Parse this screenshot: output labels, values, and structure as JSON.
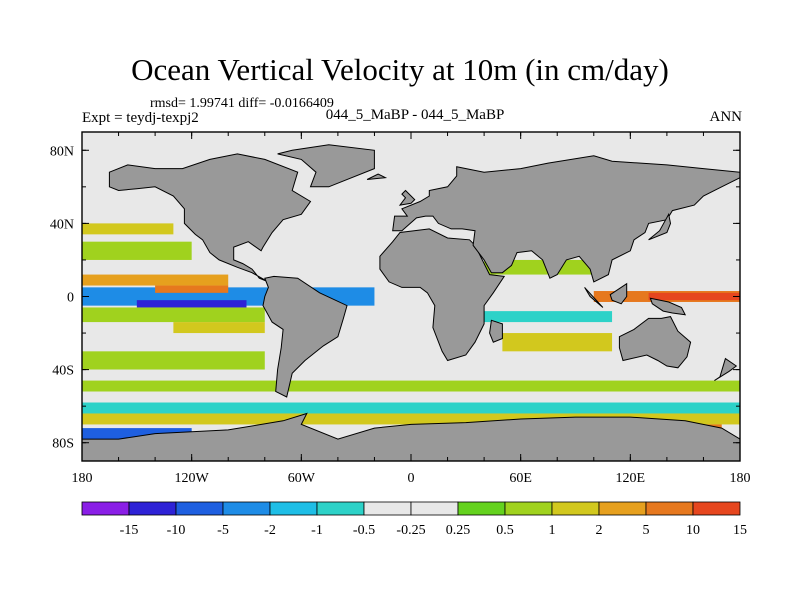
{
  "title": "Ocean Vertical Velocity at 10m (in cm/day)",
  "stats_line": "rmsd= 1.99741 diff= -0.0166409",
  "experiment_label": "Expt = teydj-texpj2",
  "subtitle": "044_5_MaBP - 044_5_MaBP",
  "season_label": "ANN",
  "map": {
    "projection": "cylindrical equidistant",
    "lon_range": [
      -180,
      180
    ],
    "lat_range": [
      -90,
      90
    ],
    "land_color": "#999999"
  },
  "axes": {
    "x_ticks": [
      {
        "lon": -180,
        "label": "180"
      },
      {
        "lon": -120,
        "label": "120W"
      },
      {
        "lon": -60,
        "label": "60W"
      },
      {
        "lon": 0,
        "label": "0"
      },
      {
        "lon": 60,
        "label": "60E"
      },
      {
        "lon": 120,
        "label": "120E"
      },
      {
        "lon": 180,
        "label": "180"
      }
    ],
    "y_ticks": [
      {
        "lat": 80,
        "label": "80N"
      },
      {
        "lat": 40,
        "label": "40N"
      },
      {
        "lat": 0,
        "label": "0"
      },
      {
        "lat": -40,
        "label": "40S"
      },
      {
        "lat": -80,
        "label": "80S"
      }
    ]
  },
  "colorbar": {
    "colors": [
      "#8a1ee6",
      "#2e22d6",
      "#1e5fe0",
      "#1e8ce6",
      "#1ebee6",
      "#2dd2c8",
      "#e8e8e8",
      "#e8e8e8",
      "#64d21e",
      "#a0d21e",
      "#d2c81e",
      "#e6a01e",
      "#e6781e",
      "#e6461e"
    ],
    "labels": [
      "-15",
      "-10",
      "-5",
      "-2",
      "-1",
      "-0.5",
      "-0.25",
      "0.25",
      "0.5",
      "1",
      "2",
      "5",
      "10",
      "15"
    ]
  },
  "field_bands": [
    {
      "lat": [
        5,
        -5
      ],
      "lon": [
        -180,
        -20
      ],
      "color": "#1e8ce6"
    },
    {
      "lat": [
        -2,
        -6
      ],
      "lon": [
        -150,
        -90
      ],
      "color": "#2e22d6"
    },
    {
      "lat": [
        12,
        6
      ],
      "lon": [
        -180,
        -100
      ],
      "color": "#e6a01e"
    },
    {
      "lat": [
        6,
        2
      ],
      "lon": [
        -140,
        -100
      ],
      "color": "#e6781e"
    },
    {
      "lat": [
        3,
        -3
      ],
      "lon": [
        100,
        180
      ],
      "color": "#e6781e"
    },
    {
      "lat": [
        2,
        -2
      ],
      "lon": [
        130,
        180
      ],
      "color": "#e6461e"
    },
    {
      "lat": [
        -6,
        -14
      ],
      "lon": [
        -180,
        -80
      ],
      "color": "#a0d21e"
    },
    {
      "lat": [
        -14,
        -20
      ],
      "lon": [
        -130,
        -80
      ],
      "color": "#d2c81e"
    },
    {
      "lat": [
        30,
        20
      ],
      "lon": [
        -180,
        -120
      ],
      "color": "#a0d21e"
    },
    {
      "lat": [
        -30,
        -40
      ],
      "lon": [
        -180,
        -80
      ],
      "color": "#a0d21e"
    },
    {
      "lat": [
        -40,
        -46
      ],
      "lon": [
        -180,
        180
      ],
      "color": "#e8e8e8"
    },
    {
      "lat": [
        -46,
        -52
      ],
      "lon": [
        -180,
        180
      ],
      "color": "#a0d21e"
    },
    {
      "lat": [
        -52,
        -58
      ],
      "lon": [
        -180,
        180
      ],
      "color": "#e8e8e8"
    },
    {
      "lat": [
        -58,
        -64
      ],
      "lon": [
        -180,
        180
      ],
      "color": "#2dd2c8"
    },
    {
      "lat": [
        -64,
        -70
      ],
      "lon": [
        -180,
        180
      ],
      "color": "#d2c81e"
    },
    {
      "lat": [
        70,
        60
      ],
      "lon": [
        -180,
        180
      ],
      "color": "#e8e8e8"
    },
    {
      "lat": [
        50,
        44
      ],
      "lon": [
        -180,
        -130
      ],
      "color": "#e8e8e8"
    },
    {
      "lat": [
        40,
        34
      ],
      "lon": [
        -180,
        -130
      ],
      "color": "#d2c81e"
    },
    {
      "lat": [
        20,
        12
      ],
      "lon": [
        40,
        100
      ],
      "color": "#a0d21e"
    },
    {
      "lat": [
        -20,
        -30
      ],
      "lon": [
        50,
        110
      ],
      "color": "#d2c81e"
    },
    {
      "lat": [
        -8,
        -14
      ],
      "lon": [
        30,
        110
      ],
      "color": "#2dd2c8"
    },
    {
      "lat": [
        -72,
        -78
      ],
      "lon": [
        -180,
        -120
      ],
      "color": "#1e5fe0"
    },
    {
      "lat": [
        -70,
        -76
      ],
      "lon": [
        130,
        170
      ],
      "color": "#e6781e"
    }
  ],
  "land_polygons": [
    [
      [
        -165,
        68
      ],
      [
        -155,
        72
      ],
      [
        -140,
        70
      ],
      [
        -125,
        70
      ],
      [
        -110,
        75
      ],
      [
        -95,
        78
      ],
      [
        -80,
        75
      ],
      [
        -62,
        68
      ],
      [
        -65,
        58
      ],
      [
        -55,
        52
      ],
      [
        -60,
        45
      ],
      [
        -70,
        42
      ],
      [
        -76,
        35
      ],
      [
        -81,
        27
      ],
      [
        -82,
        25
      ],
      [
        -89,
        30
      ],
      [
        -97,
        27
      ],
      [
        -97,
        20
      ],
      [
        -92,
        18
      ],
      [
        -87,
        15
      ],
      [
        -83,
        10
      ],
      [
        -78,
        8
      ],
      [
        -87,
        13
      ],
      [
        -95,
        16
      ],
      [
        -105,
        20
      ],
      [
        -110,
        24
      ],
      [
        -114,
        31
      ],
      [
        -118,
        34
      ],
      [
        -124,
        40
      ],
      [
        -124,
        48
      ],
      [
        -130,
        55
      ],
      [
        -140,
        60
      ],
      [
        -150,
        59
      ],
      [
        -160,
        58
      ],
      [
        -165,
        60
      ]
    ],
    [
      [
        -80,
        10
      ],
      [
        -75,
        11
      ],
      [
        -62,
        10
      ],
      [
        -50,
        2
      ],
      [
        -35,
        -5
      ],
      [
        -37,
        -12
      ],
      [
        -40,
        -22
      ],
      [
        -48,
        -27
      ],
      [
        -58,
        -35
      ],
      [
        -65,
        -42
      ],
      [
        -68,
        -55
      ],
      [
        -74,
        -52
      ],
      [
        -73,
        -40
      ],
      [
        -71,
        -28
      ],
      [
        -70,
        -18
      ],
      [
        -76,
        -14
      ],
      [
        -81,
        -5
      ],
      [
        -80,
        0
      ],
      [
        -78,
        5
      ]
    ],
    [
      [
        -55,
        60
      ],
      [
        -45,
        60
      ],
      [
        -20,
        70
      ],
      [
        -20,
        80
      ],
      [
        -45,
        83
      ],
      [
        -65,
        80
      ],
      [
        -73,
        78
      ],
      [
        -60,
        75
      ],
      [
        -52,
        68
      ]
    ],
    [
      [
        -17,
        15
      ],
      [
        -17,
        22
      ],
      [
        -10,
        30
      ],
      [
        -6,
        35
      ],
      [
        10,
        37
      ],
      [
        20,
        32
      ],
      [
        32,
        31
      ],
      [
        35,
        28
      ],
      [
        43,
        12
      ],
      [
        51,
        11
      ],
      [
        45,
        2
      ],
      [
        40,
        -5
      ],
      [
        40,
        -15
      ],
      [
        35,
        -25
      ],
      [
        30,
        -32
      ],
      [
        20,
        -35
      ],
      [
        17,
        -30
      ],
      [
        12,
        -17
      ],
      [
        13,
        -5
      ],
      [
        9,
        2
      ],
      [
        5,
        5
      ],
      [
        -5,
        5
      ],
      [
        -12,
        8
      ]
    ],
    [
      [
        -10,
        36
      ],
      [
        -9,
        44
      ],
      [
        -2,
        44
      ],
      [
        -5,
        48
      ],
      [
        5,
        52
      ],
      [
        10,
        55
      ],
      [
        10,
        58
      ],
      [
        20,
        60
      ],
      [
        25,
        66
      ],
      [
        25,
        71
      ],
      [
        40,
        68
      ],
      [
        60,
        70
      ],
      [
        75,
        73
      ],
      [
        100,
        77
      ],
      [
        110,
        74
      ],
      [
        140,
        72
      ],
      [
        160,
        70
      ],
      [
        180,
        68
      ],
      [
        180,
        65
      ],
      [
        170,
        60
      ],
      [
        160,
        55
      ],
      [
        155,
        50
      ],
      [
        143,
        47
      ],
      [
        140,
        42
      ],
      [
        130,
        40
      ],
      [
        128,
        35
      ],
      [
        122,
        31
      ],
      [
        120,
        25
      ],
      [
        110,
        20
      ],
      [
        108,
        12
      ],
      [
        100,
        8
      ],
      [
        98,
        15
      ],
      [
        92,
        22
      ],
      [
        85,
        20
      ],
      [
        80,
        12
      ],
      [
        76,
        10
      ],
      [
        72,
        20
      ],
      [
        66,
        25
      ],
      [
        58,
        24
      ],
      [
        55,
        17
      ],
      [
        50,
        13
      ],
      [
        44,
        13
      ],
      [
        40,
        20
      ],
      [
        34,
        28
      ],
      [
        35,
        36
      ],
      [
        28,
        37
      ],
      [
        22,
        37
      ],
      [
        15,
        40
      ],
      [
        12,
        44
      ],
      [
        8,
        44
      ],
      [
        3,
        43
      ],
      [
        -5,
        36
      ]
    ],
    [
      [
        114,
        -22
      ],
      [
        122,
        -18
      ],
      [
        130,
        -12
      ],
      [
        137,
        -12
      ],
      [
        142,
        -11
      ],
      [
        146,
        -19
      ],
      [
        153,
        -25
      ],
      [
        151,
        -33
      ],
      [
        146,
        -39
      ],
      [
        140,
        -38
      ],
      [
        135,
        -35
      ],
      [
        129,
        -32
      ],
      [
        116,
        -35
      ],
      [
        114,
        -28
      ]
    ],
    [
      [
        -180,
        -78
      ],
      [
        -160,
        -78
      ],
      [
        -140,
        -75
      ],
      [
        -100,
        -73
      ],
      [
        -70,
        -68
      ],
      [
        -57,
        -64
      ],
      [
        -60,
        -70
      ],
      [
        -40,
        -78
      ],
      [
        -20,
        -72
      ],
      [
        0,
        -70
      ],
      [
        30,
        -69
      ],
      [
        60,
        -67
      ],
      [
        90,
        -66
      ],
      [
        120,
        -66
      ],
      [
        150,
        -68
      ],
      [
        170,
        -72
      ],
      [
        180,
        -78
      ],
      [
        180,
        -90
      ],
      [
        -180,
        -90
      ]
    ],
    [
      [
        44,
        -13
      ],
      [
        50,
        -15
      ],
      [
        50,
        -23
      ],
      [
        45,
        -25
      ],
      [
        43,
        -20
      ]
    ],
    [
      [
        131,
        -1
      ],
      [
        141,
        -3
      ],
      [
        148,
        -6
      ],
      [
        150,
        -10
      ],
      [
        143,
        -9
      ],
      [
        138,
        -8
      ],
      [
        132,
        -4
      ]
    ],
    [
      [
        95,
        5
      ],
      [
        105,
        -6
      ],
      [
        98,
        0
      ]
    ],
    [
      [
        109,
        1
      ],
      [
        118,
        7
      ],
      [
        118,
        0
      ],
      [
        115,
        -4
      ],
      [
        110,
        -2
      ]
    ],
    [
      [
        -6,
        50
      ],
      [
        0,
        51
      ],
      [
        2,
        53
      ],
      [
        -3,
        58
      ],
      [
        -5,
        56
      ],
      [
        -3,
        54
      ]
    ],
    [
      [
        166,
        -46
      ],
      [
        174,
        -41
      ],
      [
        178,
        -38
      ],
      [
        172,
        -34
      ],
      [
        169,
        -44
      ]
    ],
    [
      [
        -24,
        64
      ],
      [
        -14,
        65
      ],
      [
        -18,
        67
      ]
    ],
    [
      [
        130,
        31
      ],
      [
        140,
        35
      ],
      [
        142,
        40
      ],
      [
        141,
        45
      ],
      [
        136,
        36
      ]
    ]
  ]
}
